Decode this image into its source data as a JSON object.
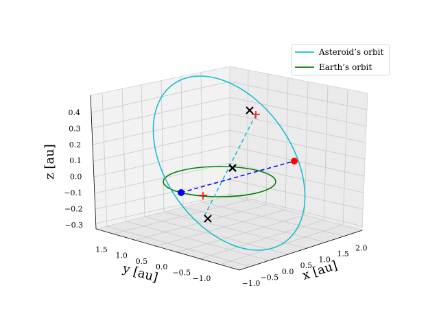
{
  "chart_data": {
    "type": "line",
    "projection": "3d",
    "axes": {
      "x": {
        "label": "x [au]",
        "ticks": [
          -1.0,
          -0.5,
          0.0,
          0.5,
          1.0,
          1.5,
          2.0
        ],
        "tick_labels": [
          "−1.0",
          "−0.5",
          "0.0",
          "0.5",
          "1.0",
          "1.5",
          "2.0"
        ]
      },
      "y": {
        "label": "y [au]",
        "ticks": [
          1.5,
          1.0,
          0.5,
          0.0,
          -0.5,
          -1.0
        ],
        "tick_labels": [
          "1.5",
          "1.0",
          "0.5",
          "0.0",
          "−0.5",
          "−1.0"
        ]
      },
      "z": {
        "label": "z [au]",
        "ticks": [
          0.4,
          0.3,
          0.2,
          0.1,
          0.0,
          -0.1,
          -0.2,
          -0.3
        ],
        "tick_labels": [
          "0.4",
          "0.3",
          "0.2",
          "0.1",
          "0.0",
          "−0.1",
          "−0.2",
          "−0.3"
        ]
      }
    },
    "grid": true,
    "legend": {
      "position": "top-right",
      "entries": [
        {
          "name": "Asteroid’s orbit",
          "color": "#17becf"
        },
        {
          "name": "Earth’s orbit",
          "color": "#008000"
        }
      ]
    },
    "series": [
      {
        "name": "Asteroid’s orbit",
        "kind": "orbit",
        "color": "#17becf"
      },
      {
        "name": "Earth’s orbit",
        "kind": "orbit",
        "color": "#008000"
      }
    ],
    "markers": {
      "blue_point_color": "#0000ff",
      "red_point_color": "#ff0000",
      "x_marker_color": "#000000",
      "plus_marker_color": "#ff0000"
    }
  }
}
